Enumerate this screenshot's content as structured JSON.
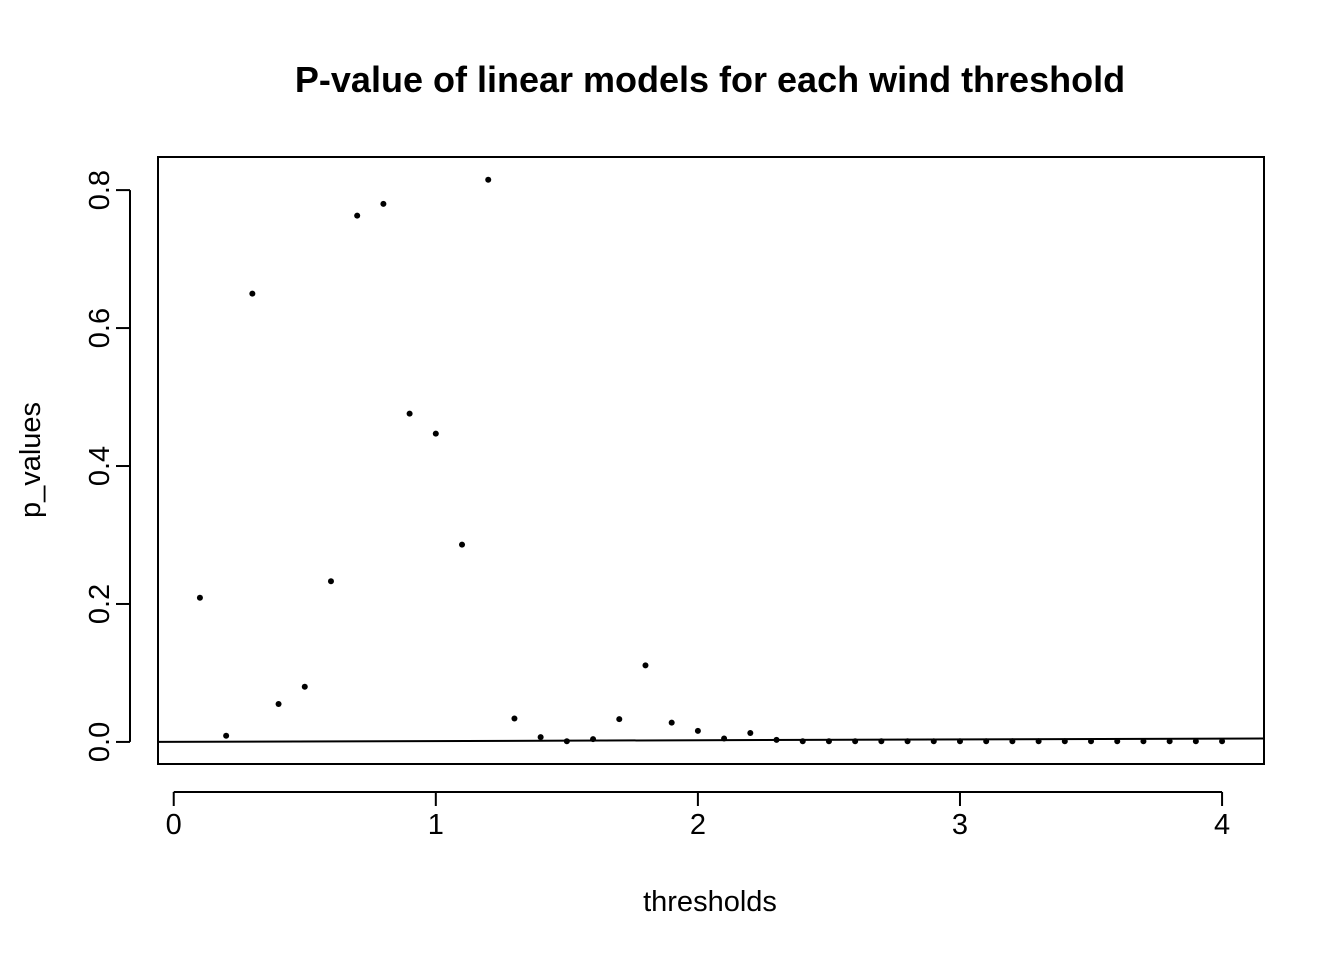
{
  "chart_data": {
    "type": "scatter",
    "title": "P-value of linear models for each wind threshold",
    "xlabel": "thresholds",
    "ylabel": "p_values",
    "xlim": [
      -0.06,
      4.16
    ],
    "ylim": [
      -0.032,
      0.848
    ],
    "x_ticks": [
      0,
      1,
      2,
      3,
      4
    ],
    "x_tick_labels": [
      "0",
      "1",
      "2",
      "3",
      "4"
    ],
    "y_ticks": [
      0.0,
      0.2,
      0.4,
      0.6,
      0.8
    ],
    "y_tick_labels": [
      "0.0",
      "0.2",
      "0.4",
      "0.6",
      "0.8"
    ],
    "grid": false,
    "legend": "none",
    "series": [
      {
        "x": [
          0.1,
          0.2,
          0.3,
          0.4,
          0.5,
          0.6,
          0.7,
          0.8,
          0.9,
          1.0,
          1.1,
          1.2,
          1.3,
          1.4,
          1.5,
          1.6,
          1.7,
          1.8,
          1.9,
          2.0,
          2.1,
          2.2,
          2.3,
          2.4,
          2.5,
          2.6,
          2.7,
          2.8,
          2.9,
          3.0,
          3.1,
          3.2,
          3.3,
          3.4,
          3.5,
          3.6,
          3.7,
          3.8,
          3.9,
          4.0
        ],
        "y": [
          0.209,
          0.009,
          0.65,
          0.055,
          0.08,
          0.233,
          0.763,
          0.78,
          0.476,
          0.447,
          0.286,
          0.815,
          0.034,
          0.007,
          0.001,
          0.004,
          0.033,
          0.111,
          0.028,
          0.016,
          0.005,
          0.013,
          0.003,
          0.001,
          0.001,
          0.001,
          0.001,
          0.001,
          0.001,
          0.001,
          0.001,
          0.001,
          0.001,
          0.001,
          0.001,
          0.001,
          0.001,
          0.001,
          0.001,
          0.001
        ]
      }
    ],
    "fit_line": {
      "x": [
        -0.06,
        4.16
      ],
      "y": [
        0.0,
        0.005
      ]
    },
    "colors": {
      "points": "#000000",
      "line": "#000000",
      "axes": "#000000"
    }
  }
}
